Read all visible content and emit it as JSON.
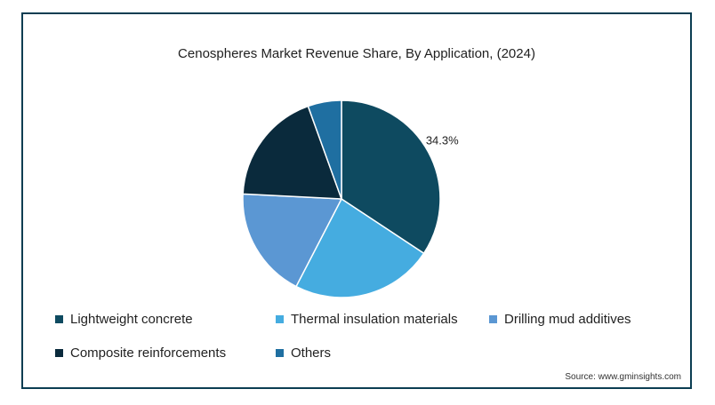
{
  "chart_data": {
    "type": "pie",
    "title": "Cenospheres Market Revenue Share, By Application, (2024)",
    "slices": [
      {
        "label": "Lightweight concrete",
        "value": 34.3,
        "color": "#0e4a60",
        "data_label": "34.3%"
      },
      {
        "label": "Thermal insulation materials",
        "value": 23.3,
        "color": "#45ace0",
        "data_label": ""
      },
      {
        "label": "Drilling mud additives",
        "value": 18.2,
        "color": "#5b97d3",
        "data_label": ""
      },
      {
        "label": "Composite reinforcements",
        "value": 18.7,
        "color": "#0a2a3c",
        "data_label": ""
      },
      {
        "label": "Others",
        "value": 5.5,
        "color": "#1f6fa1",
        "data_label": ""
      }
    ]
  },
  "source": "Source: www.gminsights.com"
}
